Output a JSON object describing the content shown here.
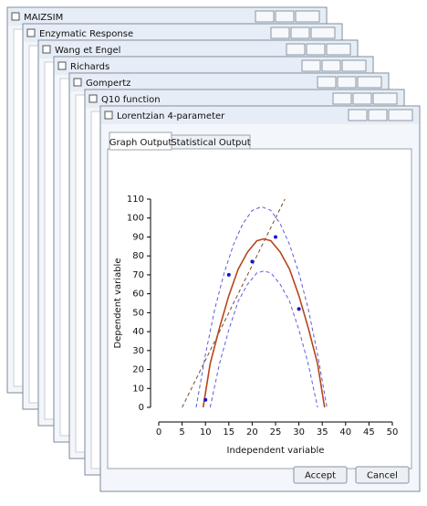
{
  "windows": [
    {
      "title": "MAIZSIM"
    },
    {
      "title": "Enzymatic Response"
    },
    {
      "title": "Wang et Engel"
    },
    {
      "title": "Richards"
    },
    {
      "title": "Gompertz"
    },
    {
      "title": "Q10 function"
    },
    {
      "title": "Lorentzian 4-parameter"
    }
  ],
  "tabs": [
    "Graph Output",
    "Statistical Output"
  ],
  "buttons": [
    "Accept",
    "Cancel"
  ],
  "chart_data": {
    "type": "line",
    "xlabel": "Independent variable",
    "ylabel": "Dependent variable",
    "xlim": [
      0,
      50
    ],
    "xticks": [
      0,
      5,
      10,
      15,
      20,
      25,
      30,
      35,
      40,
      45,
      50
    ],
    "ylim": [
      0,
      110
    ],
    "yticks": [
      0,
      10,
      20,
      30,
      40,
      50,
      60,
      70,
      80,
      90,
      100,
      110
    ],
    "series": [
      {
        "type": "line",
        "color": "#7a4a2a",
        "dashed": true,
        "x": [
          5,
          27
        ],
        "values": [
          0,
          110
        ]
      },
      {
        "type": "line",
        "color": "#5b5be0",
        "dashed": true,
        "x": [
          8,
          10,
          12,
          14,
          16,
          18,
          20,
          22,
          24,
          26,
          28,
          30,
          32,
          34,
          36
        ],
        "values": [
          0,
          28,
          52,
          71,
          86,
          97,
          104,
          106,
          104,
          97,
          86,
          71,
          52,
          28,
          0
        ]
      },
      {
        "type": "line",
        "color": "#5b5be0",
        "dashed": true,
        "x": [
          11,
          13,
          15,
          17,
          19,
          21,
          22.5,
          24,
          26,
          28,
          30,
          32,
          34
        ],
        "values": [
          0,
          23,
          41,
          56,
          65,
          71,
          72,
          71,
          65,
          56,
          41,
          23,
          0
        ]
      },
      {
        "type": "line",
        "color": "#b5461a",
        "dashed": false,
        "x": [
          9.5,
          11,
          13,
          15,
          17,
          19,
          21,
          22.5,
          24,
          26,
          28,
          30,
          32,
          34,
          35.5
        ],
        "values": [
          0,
          23,
          42,
          59,
          73,
          82,
          88,
          89,
          88,
          82,
          73,
          59,
          42,
          23,
          0
        ]
      },
      {
        "type": "scatter",
        "color": "#1515d0",
        "x": [
          10,
          15,
          20,
          25,
          30
        ],
        "values": [
          4,
          70,
          77,
          90,
          52
        ]
      }
    ]
  }
}
